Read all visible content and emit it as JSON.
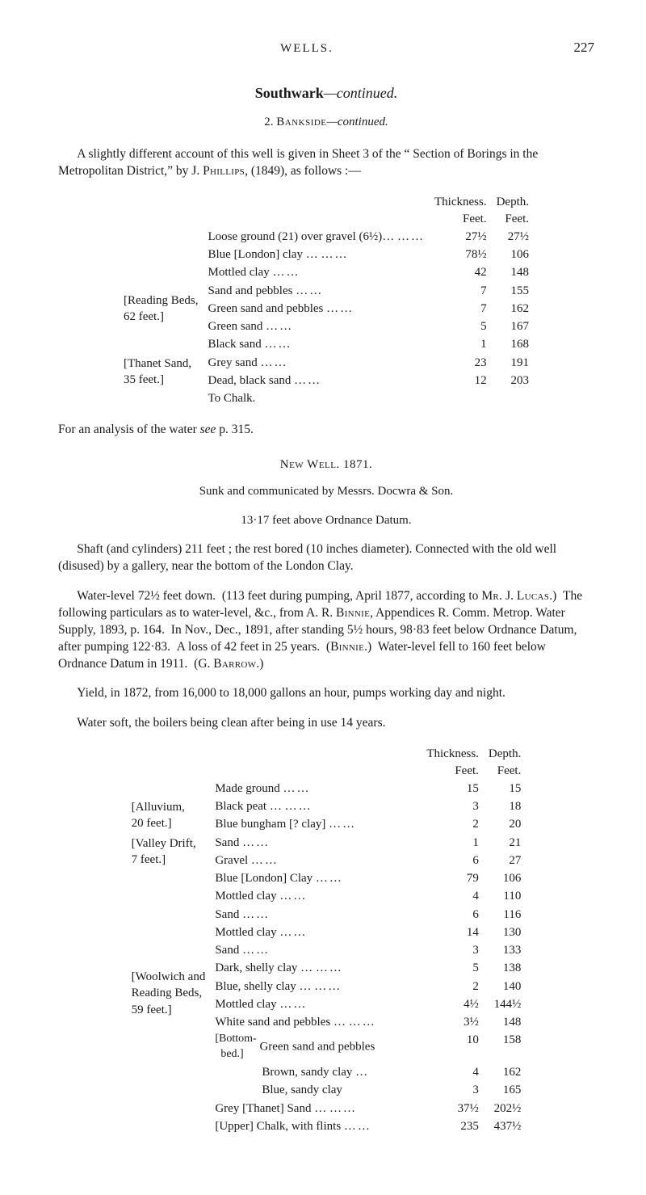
{
  "page_number": "227",
  "running_head": "WELLS.",
  "title_main": "Southwark",
  "title_suffix": "—continued.",
  "subsection_num": "2.",
  "subsection_name": "Bankside",
  "subsection_suffix": "—continued.",
  "intro": "A slightly different account of this well is given in Sheet 3 of the “ Section of Borings in the Metropolitan District,” by J. Phillips, (1849), as follows :—",
  "col_thickness": "Thickness.",
  "col_feet1": "Feet.",
  "col_depth": "Depth.",
  "col_feet2": "Feet.",
  "table1": {
    "rows": [
      {
        "group": "",
        "label": "Loose ground (21) over gravel (6½)…",
        "t": "27½",
        "d": "27½"
      },
      {
        "group": "",
        "label": "Blue [London] clay …",
        "t": "78½",
        "d": "106"
      },
      {
        "group": "[Reading Beds, 62 feet.]",
        "brace": true,
        "items": [
          {
            "label": "Mottled clay",
            "t": "42",
            "d": "148"
          },
          {
            "label": "Sand and pebbles",
            "t": "7",
            "d": "155"
          },
          {
            "label": "Green sand and pebbles",
            "t": "7",
            "d": "162"
          },
          {
            "label": "Green sand",
            "t": "5",
            "d": "167"
          },
          {
            "label": "Black sand",
            "t": "1",
            "d": "168"
          }
        ]
      },
      {
        "group": "[Thanet Sand, 35 feet.]",
        "brace": true,
        "items": [
          {
            "label": "Grey sand",
            "t": "23",
            "d": "191"
          },
          {
            "label": "Dead, black sand",
            "t": "12",
            "d": "203"
          }
        ]
      },
      {
        "group": "",
        "label": "To Chalk.",
        "t": "",
        "d": ""
      }
    ]
  },
  "analysis_line": "For an analysis of the water see p. 315.",
  "analysis_see": "see",
  "new_well": "New Well.  1871.",
  "sunk_by": "Sunk and communicated by Messrs. Docwra & Son.",
  "sunk_names": "Messrs. Docwra & Son",
  "datum_line": "13·17 feet above Ordnance Datum.",
  "shaft_para": "Shaft (and cylinders) 211 feet ; the rest bored (10 inches diameter). Con­nected with the old well (disused) by a gallery, near the bottom of the London Clay.",
  "wl_para": "Water-level 72½ feet down. (113 feet during pumping, April 1877, according to Mr. J. Lucas.) The following particulars as to water-level, &c., from A. R. Binnie, Appendices R. Comm. Metrop. Water Supply, 1893, p. 164. In Nov., Dec., 1891, after standing 5½ hours, 98·83 feet below Ordnance Datum, after pumping 122·83. A loss of 42 feet in 25 years. (Binnie.) Water-level fell to 160 feet below Ordnance Datum in 1911. (G. Barrow.)",
  "yield_para": "Yield, in 1872, from 16,000 to 18,000 gallons an hour, pumps working day and night.",
  "soft_para": "Water soft, the boilers being clean after being in use 14 years.",
  "table2": {
    "rows": [
      {
        "group": "",
        "label": "Made ground",
        "t": "15",
        "d": "15"
      },
      {
        "group": "[Alluvium, 20 feet.]",
        "brace": true,
        "items": [
          {
            "label": "Black peat …",
            "t": "3",
            "d": "18"
          },
          {
            "label": "Blue bungham [? clay]",
            "t": "2",
            "d": "20"
          }
        ]
      },
      {
        "group": "[Valley Drift, 7 feet.]",
        "brace": true,
        "items": [
          {
            "label": "Sand",
            "t": "1",
            "d": "21"
          },
          {
            "label": "Gravel",
            "t": "6",
            "d": "27"
          }
        ]
      },
      {
        "group": "",
        "label": "Blue [London] Clay",
        "t": "79",
        "d": "106"
      },
      {
        "group": "[Woolwich and Reading Beds, 59 feet.]",
        "brace": true,
        "items": [
          {
            "label": "Mottled clay",
            "t": "4",
            "d": "110"
          },
          {
            "label": "Sand",
            "t": "6",
            "d": "116"
          },
          {
            "label": "Mottled clay",
            "t": "14",
            "d": "130"
          },
          {
            "label": "Sand",
            "t": "3",
            "d": "133"
          },
          {
            "label": "Dark, shelly clay …",
            "t": "5",
            "d": "138"
          },
          {
            "label": "Blue, shelly clay …",
            "t": "2",
            "d": "140"
          },
          {
            "label": "Mottled clay",
            "t": "4½",
            "d": "144½"
          },
          {
            "label": "White sand and pebbles …",
            "t": "3½",
            "d": "148"
          }
        ]
      },
      {
        "group": "[Bottom-bed.]",
        "brace": true,
        "nested": true,
        "items": [
          {
            "label": "Green sand and pebbles",
            "t": "10",
            "d": "158"
          },
          {
            "label": "Brown, sandy clay …",
            "t": "4",
            "d": "162"
          },
          {
            "label": "Blue, sandy clay",
            "t": "3",
            "d": "165"
          }
        ]
      },
      {
        "group": "",
        "label": "Grey [Thanet] Sand  …",
        "t": "37½",
        "d": "202½"
      },
      {
        "group": "",
        "label": "[Upper] Chalk, with flints",
        "t": "235",
        "d": "437½"
      }
    ]
  }
}
